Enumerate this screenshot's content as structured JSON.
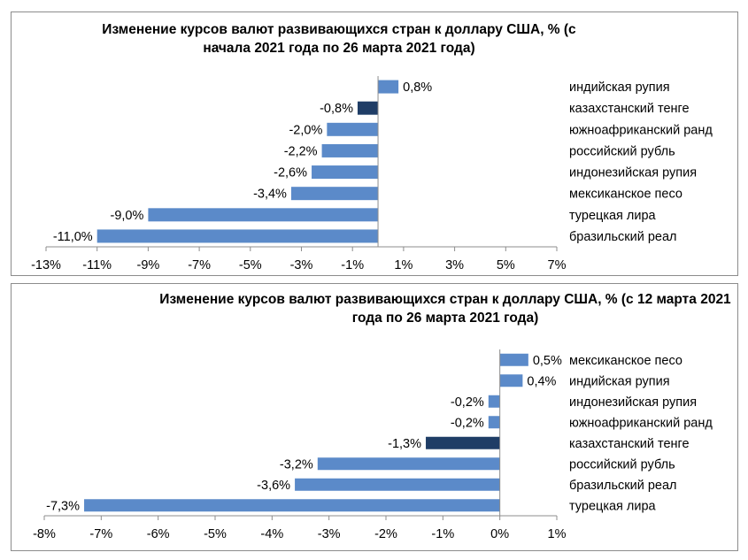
{
  "chart_data": [
    {
      "type": "bar",
      "orientation": "horizontal",
      "title": "Изменение курсов валют развивающихся стран к доллару США, % (с начала 2021 года по 26 марта 2021 года)",
      "categories": [
        "индийская рупия",
        "казахстанский тенге",
        "южноафриканский ранд",
        "российский рубль",
        "индонезийская рупия",
        "мексиканское песо",
        "турецкая лира",
        "бразильский реал"
      ],
      "values": [
        0.8,
        -0.8,
        -2.0,
        -2.2,
        -2.6,
        -3.4,
        -9.0,
        -11.0
      ],
      "data_labels": [
        "0,8%",
        "-0,8%",
        "-2,0%",
        "-2,2%",
        "-2,6%",
        "-3,4%",
        "-9,0%",
        "-11,0%"
      ],
      "xlim": [
        -13,
        7
      ],
      "xticks": [
        -13,
        -11,
        -9,
        -7,
        -5,
        -3,
        -1,
        1,
        3,
        5,
        7
      ],
      "xtick_labels": [
        "-13%",
        "-11%",
        "-9%",
        "-7%",
        "-5%",
        "-3%",
        "-1%",
        "1%",
        "3%",
        "5%",
        "7%"
      ],
      "bar_color": "#5b8ac9",
      "highlight_index": 1,
      "highlight_color": "#1f3d66",
      "grid": false,
      "legend": "none"
    },
    {
      "type": "bar",
      "orientation": "horizontal",
      "title": "Изменение курсов валют развивающихся стран к доллару США, % (с 12 марта 2021 года по 26 марта 2021 года)",
      "categories": [
        "мексиканское песо",
        "индийская рупия",
        "индонезийская рупия",
        "южноафриканский ранд",
        "казахстанский тенге",
        "российский рубль",
        "бразильский реал",
        "турецкая лира"
      ],
      "values": [
        0.5,
        0.4,
        -0.2,
        -0.2,
        -1.3,
        -3.2,
        -3.6,
        -7.3
      ],
      "data_labels": [
        "0,5%",
        "0,4%",
        "-0,2%",
        "-0,2%",
        "-1,3%",
        "-3,2%",
        "-3,6%",
        "-7,3%"
      ],
      "xlim": [
        -8,
        1
      ],
      "xticks": [
        -8,
        -7,
        -6,
        -5,
        -4,
        -3,
        -2,
        -1,
        0,
        1
      ],
      "xtick_labels": [
        "-8%",
        "-7%",
        "-6%",
        "-5%",
        "-4%",
        "-3%",
        "-2%",
        "-1%",
        "0%",
        "1%"
      ],
      "bar_color": "#5b8ac9",
      "highlight_index": 4,
      "highlight_color": "#1f3d66",
      "grid": false,
      "legend": "none"
    }
  ]
}
